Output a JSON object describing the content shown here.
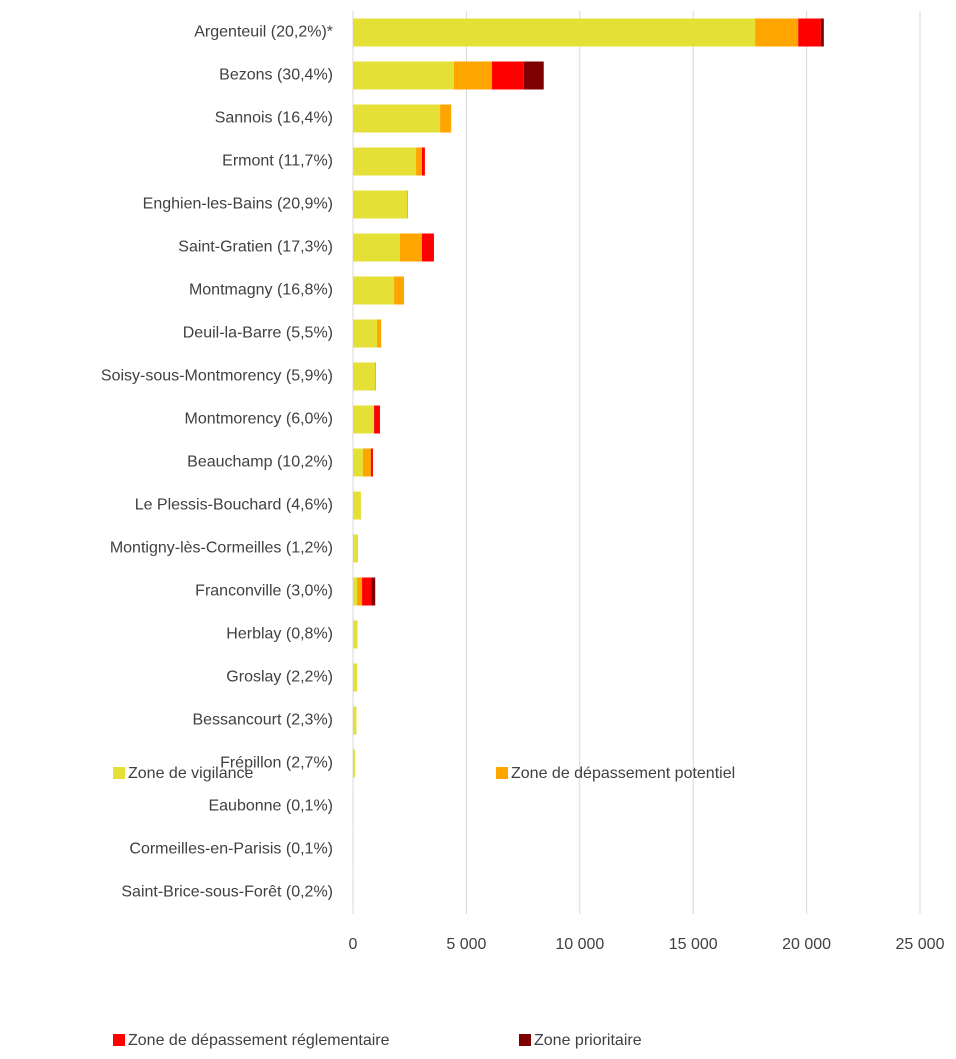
{
  "chart_data": {
    "type": "stacked-bar-horizontal",
    "categories": [
      "Argenteuil (20,2%)*",
      "Bezons (30,4%)",
      "Sannois (16,4%)",
      "Ermont (11,7%)",
      "Enghien-les-Bains (20,9%)",
      "Saint-Gratien (17,3%)",
      "Montmagny (16,8%)",
      "Deuil-la-Barre (5,5%)",
      "Soisy-sous-Montmorency (5,9%)",
      "Montmorency (6,0%)",
      "Beauchamp (10,2%)",
      "Le Plessis-Bouchard (4,6%)",
      "Montigny-lès-Cormeilles (1,2%)",
      "Franconville (3,0%)",
      "Herblay (0,8%)",
      "Groslay (2,2%)",
      "Bessancourt (2,3%)",
      "Frépillon (2,7%)",
      "Eaubonne (0,1%)",
      "Cormeilles-en-Parisis (0,1%)",
      "Saint-Brice-sous-Forêt (0,2%)"
    ],
    "series": [
      {
        "name": "Zone de vigilance",
        "color": "#e5e036",
        "values": [
          17730,
          4450,
          3840,
          2780,
          2380,
          2070,
          1810,
          1060,
          970,
          930,
          440,
          350,
          220,
          180,
          200,
          180,
          150,
          90,
          20,
          20,
          10
        ]
      },
      {
        "name": "Zone de dépassement potentiel",
        "color": "#ffa500",
        "values": [
          1900,
          1680,
          490,
          260,
          40,
          970,
          440,
          180,
          40,
          0,
          350,
          0,
          0,
          220,
          0,
          0,
          0,
          0,
          0,
          0,
          0
        ]
      },
      {
        "name": "Zone de dépassement réglementaire",
        "color": "#ff0000",
        "values": [
          1000,
          1400,
          0,
          130,
          0,
          530,
          0,
          0,
          0,
          260,
          90,
          0,
          0,
          400,
          0,
          0,
          0,
          0,
          0,
          0,
          0
        ]
      },
      {
        "name": "Zone prioritaire",
        "color": "#7f0000",
        "values": [
          130,
          880,
          0,
          0,
          0,
          0,
          0,
          0,
          0,
          0,
          0,
          0,
          0,
          180,
          0,
          0,
          0,
          0,
          0,
          0,
          0
        ]
      }
    ],
    "xlim": [
      0,
      25000
    ],
    "xticks": [
      0,
      {
        "value": 5000,
        "label": "5 000"
      },
      {
        "value": 10000,
        "label": "10 000"
      },
      {
        "value": 15000,
        "label": "15 000"
      },
      {
        "value": 20000,
        "label": "20 000"
      },
      {
        "value": 25000,
        "label": "25 000"
      }
    ],
    "grid": true,
    "legend": "bottom"
  }
}
